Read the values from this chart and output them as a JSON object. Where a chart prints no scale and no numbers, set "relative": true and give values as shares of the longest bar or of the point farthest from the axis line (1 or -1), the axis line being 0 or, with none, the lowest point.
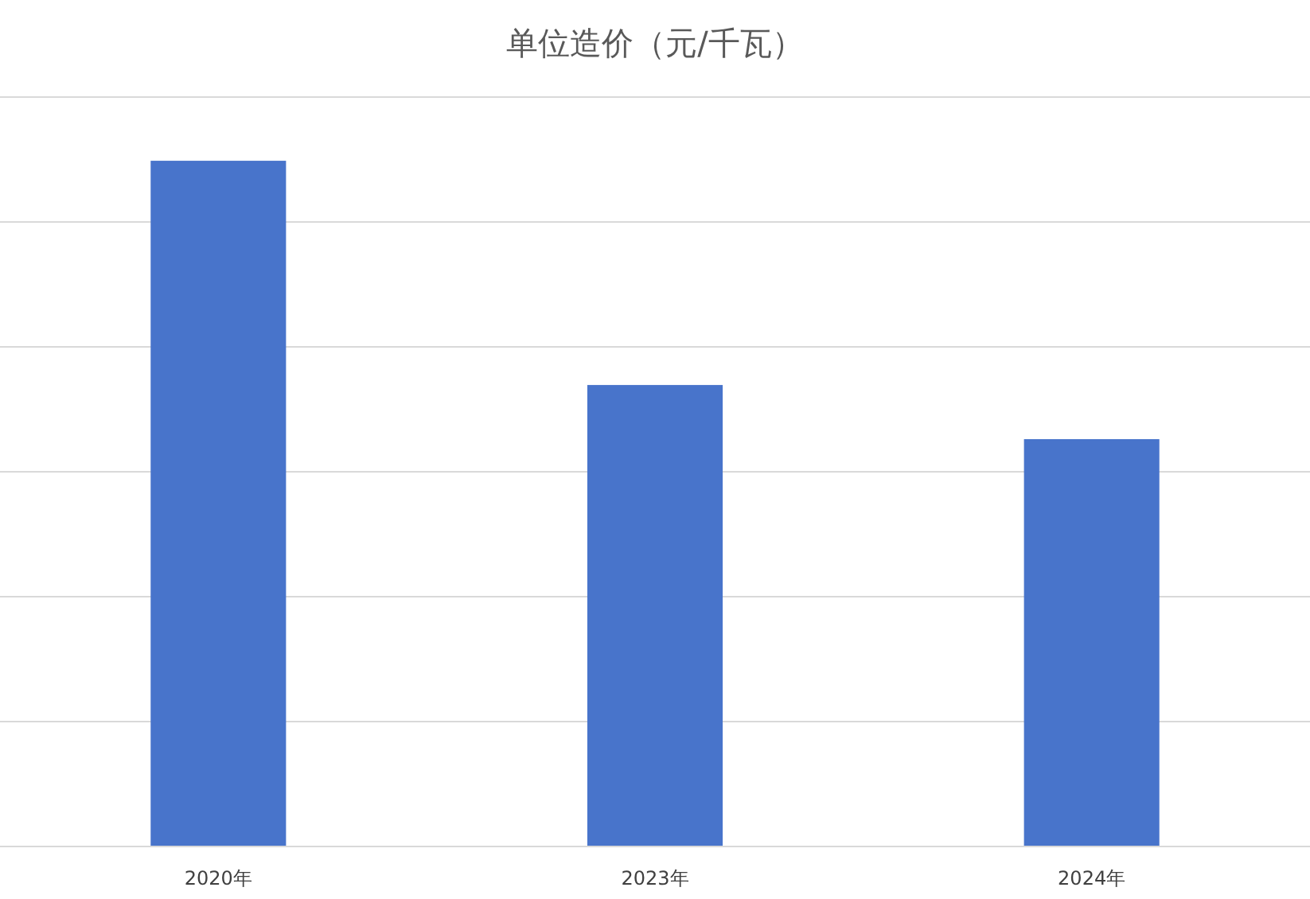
{
  "chart_data": {
    "type": "bar",
    "title": "单位造价（元/千瓦）",
    "categories": [
      "2020年",
      "2023年",
      "2024年"
    ],
    "values": [
      1,
      0.673,
      0.594
    ],
    "color": "#4874cb",
    "relative": true,
    "grid": "y"
  }
}
